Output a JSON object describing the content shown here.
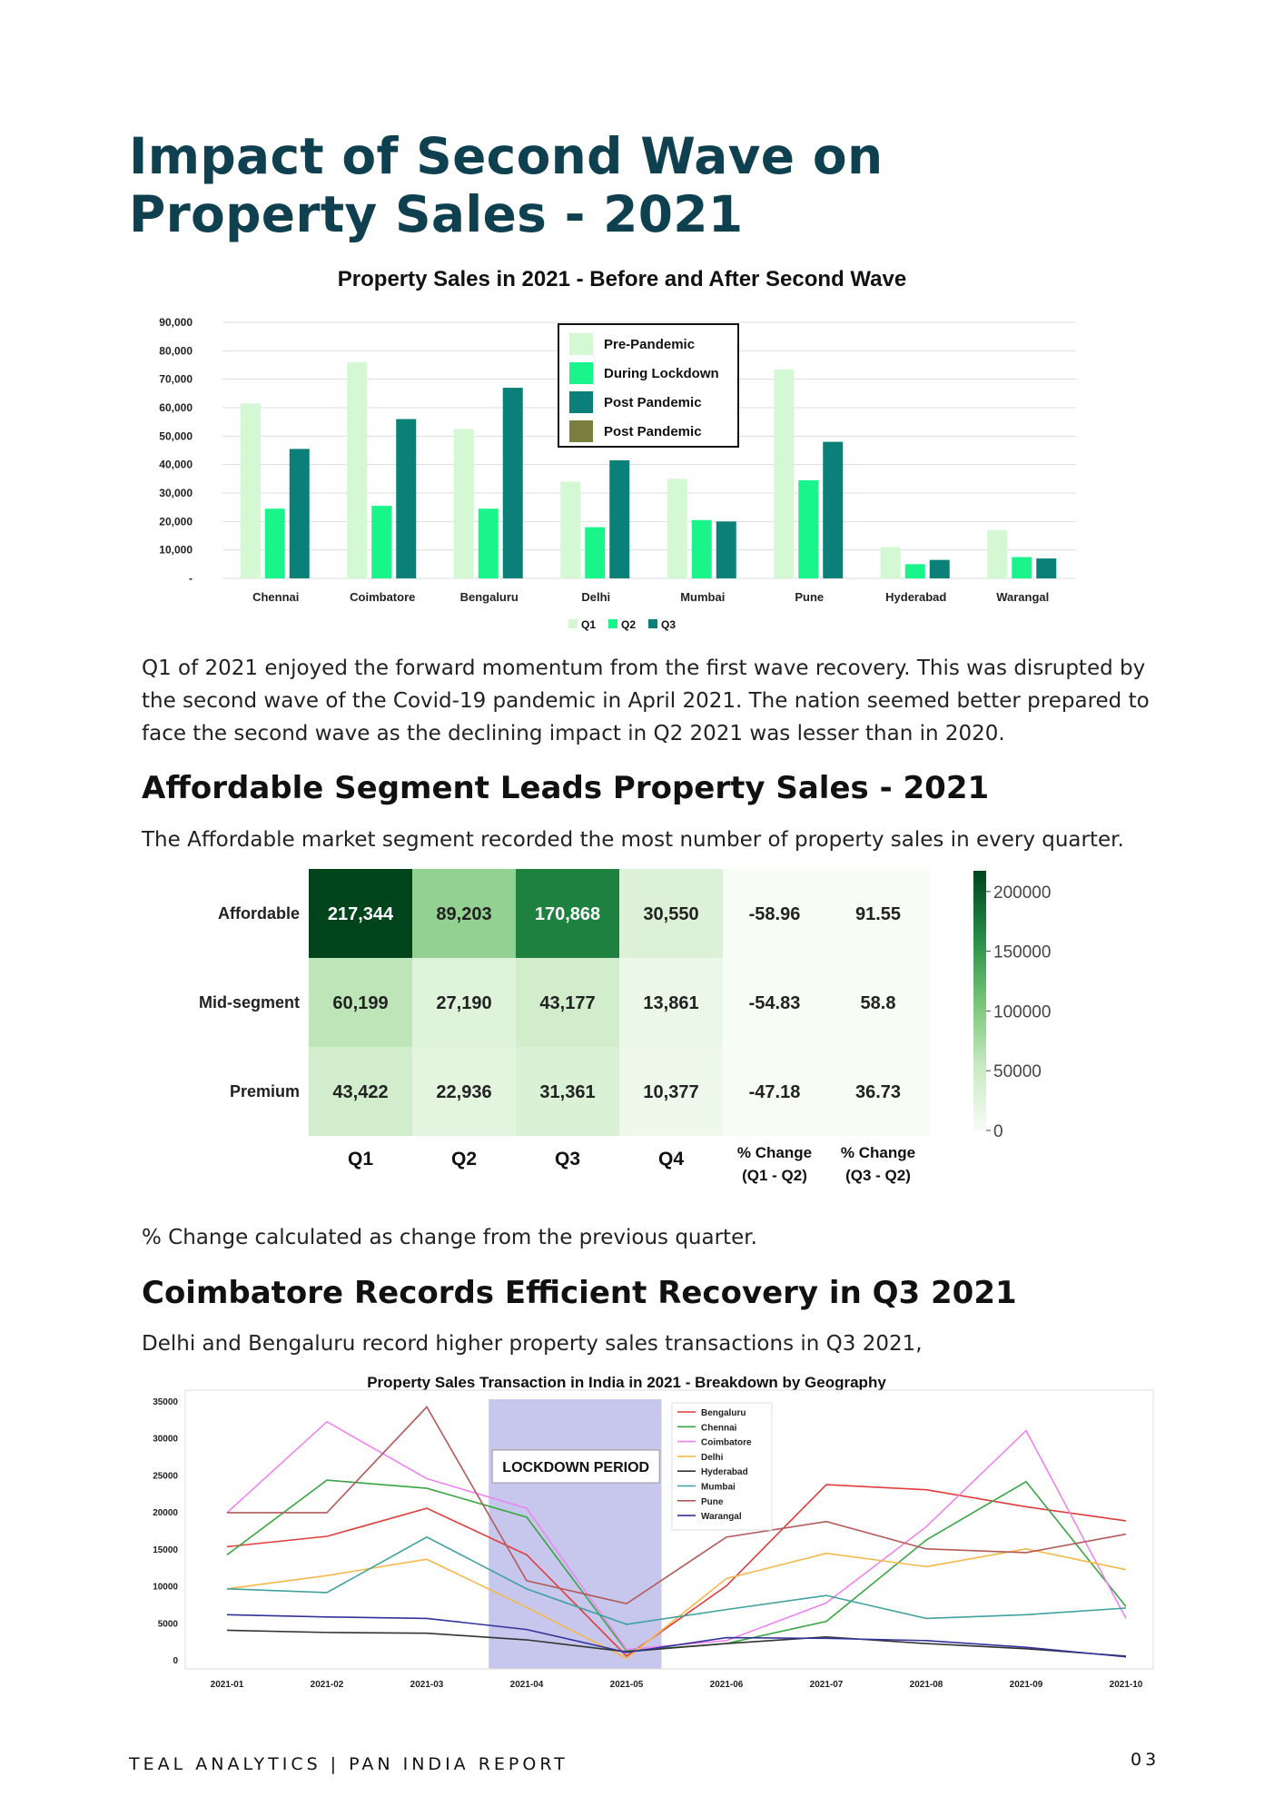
{
  "page": {
    "title_line1": "Impact of Second Wave on",
    "title_line2": "Property Sales - 2021",
    "para1": "Q1 of 2021 enjoyed the forward momentum from the first wave recovery. This was disrupted by the second wave of the Covid-19 pandemic in April 2021. The nation seemed better prepared to face the second wave as the declining impact in Q2 2021 was lesser than in 2020.",
    "heading2": "Affordable Segment Leads Property Sales - 2021",
    "para2": "The Affordable market segment recorded the most number of property sales in every quarter.",
    "note": "% Change calculated as change from the previous quarter.",
    "heading3": "Coimbatore Records Efficient Recovery in Q3 2021",
    "para3": "Delhi and Bengaluru record higher property sales transactions in Q3 2021,",
    "footer": "TEAL ANALYTICS | PAN INDIA REPORT",
    "page_number": "03"
  },
  "colors": {
    "q1": "#d4f7d4",
    "q2": "#19f58a",
    "q3": "#0a8078",
    "post_pandemic_olive": "#7a7f3d",
    "title": "#0e4050"
  },
  "chart_data": [
    {
      "type": "bar",
      "title": "Property Sales in 2021 - Before and After Second Wave",
      "categories": [
        "Chennai",
        "Coimbatore",
        "Bengaluru",
        "Delhi",
        "Mumbai",
        "Pune",
        "Hyderabad",
        "Warangal"
      ],
      "series": [
        {
          "name": "Q1",
          "values": [
            61500,
            76000,
            52500,
            34000,
            35000,
            73500,
            11000,
            17000
          ]
        },
        {
          "name": "Q2",
          "values": [
            24500,
            25500,
            24500,
            18000,
            20500,
            34500,
            5000,
            7500
          ]
        },
        {
          "name": "Q3",
          "values": [
            45500,
            56000,
            67000,
            41500,
            20000,
            48000,
            6500,
            7000
          ]
        }
      ],
      "ylim": [
        0,
        90000
      ],
      "yticks": [
        "-",
        "10,000",
        "20,000",
        "30,000",
        "40,000",
        "50,000",
        "60,000",
        "70,000",
        "80,000",
        "90,000"
      ],
      "inner_legend": [
        {
          "label": "Pre-Pandemic",
          "color": "#d4f7d4"
        },
        {
          "label": "During Lockdown",
          "color": "#19f58a"
        },
        {
          "label": "Post Pandemic",
          "color": "#0a8078"
        },
        {
          "label": "Post Pandemic",
          "color": "#7a7f3d"
        }
      ],
      "legend": [
        "Q1",
        "Q2",
        "Q3"
      ],
      "grid": true
    },
    {
      "type": "heatmap",
      "rows": [
        "Affordable",
        "Mid-segment",
        "Premium"
      ],
      "columns": [
        "Q1",
        "Q2",
        "Q3",
        "Q4",
        "% Change\n(Q1 - Q2)",
        "% Change\n(Q3 - Q2)"
      ],
      "column_lines": [
        [
          "Q1"
        ],
        [
          "Q2"
        ],
        [
          "Q3"
        ],
        [
          "Q4"
        ],
        [
          "% Change",
          "(Q1 - Q2)"
        ],
        [
          "% Change",
          "(Q3 - Q2)"
        ]
      ],
      "values": [
        [
          217344,
          89203,
          170868,
          30550,
          -58.96,
          91.55
        ],
        [
          60199,
          27190,
          43177,
          13861,
          -54.83,
          58.8
        ],
        [
          43422,
          22936,
          31361,
          10377,
          -47.18,
          36.73
        ]
      ],
      "labels": [
        [
          "217,344",
          "89,203",
          "170,868",
          "30,550",
          "-58.96",
          "91.55"
        ],
        [
          "60,199",
          "27,190",
          "43,177",
          "13,861",
          "-54.83",
          "58.8"
        ],
        [
          "43,422",
          "22,936",
          "31,361",
          "10,377",
          "-47.18",
          "36.73"
        ]
      ],
      "colorbar_range": [
        0,
        217344
      ],
      "colorbar_ticks": [
        0,
        50000,
        100000,
        150000,
        200000
      ],
      "colorbar_labels": [
        "0",
        "50000",
        "100000",
        "150000",
        "200000"
      ]
    },
    {
      "type": "line",
      "title": "Property Sales Transaction in India in 2021 - Breakdown by Geography",
      "x": [
        "2021-01",
        "2021-02",
        "2021-03",
        "2021-04",
        "2021-05",
        "2021-06",
        "2021-07",
        "2021-08",
        "2021-09",
        "2021-10"
      ],
      "ylim": [
        0,
        35000
      ],
      "yticks": [
        "0",
        "5000",
        "10000",
        "15000",
        "20000",
        "25000",
        "30000",
        "35000"
      ],
      "series": [
        {
          "name": "Bengaluru",
          "color": "#e23b3b",
          "values": [
            15300,
            16700,
            20500,
            14200,
            500,
            10000,
            23700,
            23000,
            20700,
            18800
          ]
        },
        {
          "name": "Chennai",
          "color": "#3aa543",
          "values": [
            14200,
            24300,
            23200,
            19300,
            1200,
            2200,
            5200,
            16200,
            24100,
            7200
          ]
        },
        {
          "name": "Coimbatore",
          "color": "#ee85ee",
          "values": [
            19900,
            32200,
            24500,
            20500,
            1400,
            2600,
            7700,
            18000,
            31000,
            5600
          ]
        },
        {
          "name": "Delhi",
          "color": "#f5b94a",
          "values": [
            9600,
            11400,
            13600,
            7100,
            200,
            11000,
            14400,
            12600,
            15000,
            12200
          ]
        },
        {
          "name": "Hyderabad",
          "color": "#333333",
          "values": [
            4000,
            3700,
            3600,
            2700,
            1100,
            2200,
            3100,
            2200,
            1500,
            500
          ]
        },
        {
          "name": "Mumbai",
          "color": "#3fa1a0",
          "values": [
            9600,
            9100,
            16600,
            9600,
            4800,
            6800,
            8700,
            5600,
            6100,
            7000
          ]
        },
        {
          "name": "Pune",
          "color": "#b35a5a",
          "values": [
            19900,
            19900,
            34200,
            10700,
            7600,
            16600,
            18700,
            15000,
            14500,
            17000
          ]
        },
        {
          "name": "Warangal",
          "color": "#32329a",
          "values": [
            6100,
            5800,
            5600,
            4100,
            1000,
            3000,
            2900,
            2600,
            1700,
            400
          ]
        }
      ],
      "annotation": "LOCKDOWN PERIOD",
      "shaded_range": [
        "2021-04",
        "2021-05"
      ],
      "legend_position": "upper-middle",
      "grid": false
    }
  ]
}
